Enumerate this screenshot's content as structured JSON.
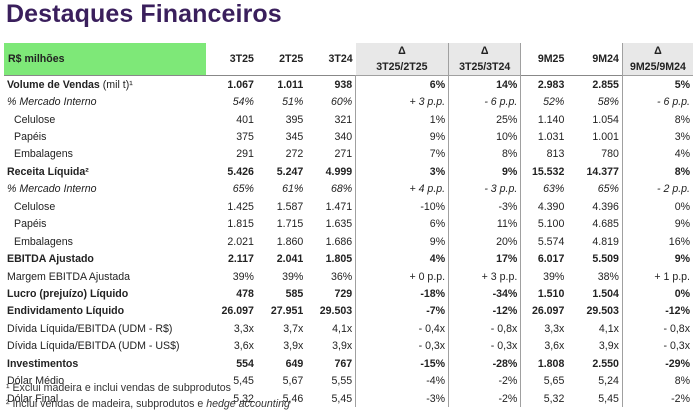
{
  "title": "Destaques Financeiros",
  "header": {
    "corner": "R$ milhões",
    "cols": [
      "3T25",
      "2T25",
      "3T24"
    ],
    "delta_symbol": "Δ",
    "delta1": "3T25/2T25",
    "delta2": "3T25/3T24",
    "cols2": [
      "9M25",
      "9M24"
    ],
    "delta3": "9M25/9M24"
  },
  "rows": [
    {
      "label": "Volume de Vendas",
      "suffix": " (mil t)¹",
      "style": "bold",
      "cells": [
        "1.067",
        "1.011",
        "938",
        "6%",
        "14%",
        "2.983",
        "2.855",
        "5%"
      ]
    },
    {
      "label": "% Mercado Interno",
      "style": "ital",
      "cells": [
        "54%",
        "51%",
        "60%",
        "+ 3 p.p.",
        "- 6 p.p.",
        "52%",
        "58%",
        "- 6 p.p."
      ]
    },
    {
      "label": "Celulose",
      "style": "ind",
      "cells": [
        "401",
        "395",
        "321",
        "1%",
        "25%",
        "1.140",
        "1.054",
        "8%"
      ]
    },
    {
      "label": "Papéis",
      "style": "ind",
      "cells": [
        "375",
        "345",
        "340",
        "9%",
        "10%",
        "1.031",
        "1.001",
        "3%"
      ]
    },
    {
      "label": "Embalagens",
      "style": "ind",
      "cells": [
        "291",
        "272",
        "271",
        "7%",
        "8%",
        "813",
        "780",
        "4%"
      ]
    },
    {
      "label": "Receita Líquida²",
      "style": "bold",
      "cells": [
        "5.426",
        "5.247",
        "4.999",
        "3%",
        "9%",
        "15.532",
        "14.377",
        "8%"
      ]
    },
    {
      "label": "% Mercado Interno",
      "style": "ital",
      "cells": [
        "65%",
        "61%",
        "68%",
        "+ 4 p.p.",
        "- 3 p.p.",
        "63%",
        "65%",
        "- 2 p.p."
      ]
    },
    {
      "label": "Celulose",
      "style": "ind",
      "cells": [
        "1.425",
        "1.587",
        "1.471",
        "-10%",
        "-3%",
        "4.390",
        "4.396",
        "0%"
      ]
    },
    {
      "label": "Papéis",
      "style": "ind",
      "cells": [
        "1.815",
        "1.715",
        "1.635",
        "6%",
        "11%",
        "5.100",
        "4.685",
        "9%"
      ]
    },
    {
      "label": "Embalagens",
      "style": "ind",
      "cells": [
        "2.021",
        "1.860",
        "1.686",
        "9%",
        "20%",
        "5.574",
        "4.819",
        "16%"
      ]
    },
    {
      "label": "EBITDA Ajustado",
      "style": "bold",
      "cells": [
        "2.117",
        "2.041",
        "1.805",
        "4%",
        "17%",
        "6.017",
        "5.509",
        "9%"
      ]
    },
    {
      "label": "Margem EBITDA Ajustada",
      "style": "plain",
      "cells": [
        "39%",
        "39%",
        "36%",
        "+ 0 p.p.",
        "+ 3 p.p.",
        "39%",
        "38%",
        "+ 1 p.p."
      ]
    },
    {
      "label": "Lucro (prejuízo) Líquido",
      "style": "bold",
      "cells": [
        "478",
        "585",
        "729",
        "-18%",
        "-34%",
        "1.510",
        "1.504",
        "0%"
      ]
    },
    {
      "label": "Endividamento Líquido",
      "style": "bold",
      "cells": [
        "26.097",
        "27.951",
        "29.503",
        "-7%",
        "-12%",
        "26.097",
        "29.503",
        "-12%"
      ]
    },
    {
      "label": "Dívida Líquida/EBITDA (UDM - R$)",
      "style": "plain",
      "cells": [
        "3,3x",
        "3,7x",
        "4,1x",
        "- 0,4x",
        "- 0,8x",
        "3,3x",
        "4,1x",
        "- 0,8x"
      ]
    },
    {
      "label": "Dívida Líquida/EBITDA (UDM - US$)",
      "style": "plain",
      "cells": [
        "3,6x",
        "3,9x",
        "3,9x",
        "- 0,3x",
        "- 0,3x",
        "3,6x",
        "3,9x",
        "- 0,3x"
      ]
    },
    {
      "label": "Investimentos",
      "style": "bold",
      "cells": [
        "554",
        "649",
        "767",
        "-15%",
        "-28%",
        "1.808",
        "2.550",
        "-29%"
      ]
    },
    {
      "label": "Dólar Médio",
      "style": "plain",
      "cells": [
        "5,45",
        "5,67",
        "5,55",
        "-4%",
        "-2%",
        "5,65",
        "5,24",
        "8%"
      ]
    },
    {
      "label": "Dólar Final",
      "style": "plain",
      "cells": [
        "5,32",
        "5,46",
        "5,45",
        "-3%",
        "-2%",
        "5,32",
        "5,45",
        "-2%"
      ]
    }
  ],
  "footnotes": {
    "fn1": "¹ Exclui madeira e inclui vendas de subprodutos",
    "fn2_prefix": "² Inclui vendas de madeira, subprodutos e ",
    "fn2_italic": "hedge accounting"
  }
}
